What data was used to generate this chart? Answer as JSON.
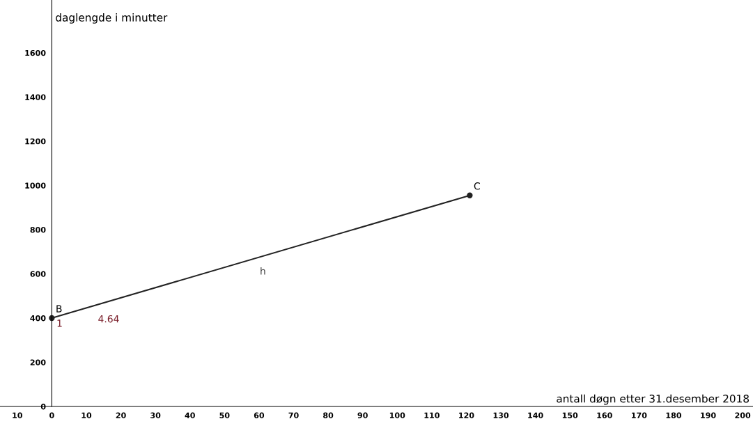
{
  "chart_data": {
    "type": "line",
    "xlabel": "antall døgn etter 31.desember 2018",
    "ylabel": "daglengde i minutter",
    "x": [
      0,
      121
    ],
    "series": [
      {
        "color": "#222222",
        "values": [
          400,
          955
        ]
      }
    ],
    "marker": "circle",
    "line_style": "solid",
    "grid": false,
    "legend": false,
    "xlim": [
      -15,
      203
    ],
    "ylim": [
      -129,
      1839
    ],
    "xticks": [
      {
        "value": -10,
        "label": "10"
      },
      0,
      10,
      20,
      30,
      40,
      50,
      60,
      70,
      80,
      90,
      100,
      110,
      120,
      130,
      140,
      150,
      160,
      170,
      180,
      190,
      200
    ],
    "yticks": [
      0,
      200,
      400,
      600,
      800,
      1000,
      1200,
      1400,
      1600
    ],
    "annotations": [
      {
        "text": "B",
        "x": 0,
        "y": 400
      },
      {
        "text": "C",
        "x": 121,
        "y": 955
      },
      "h",
      "1",
      "4.64"
    ]
  }
}
